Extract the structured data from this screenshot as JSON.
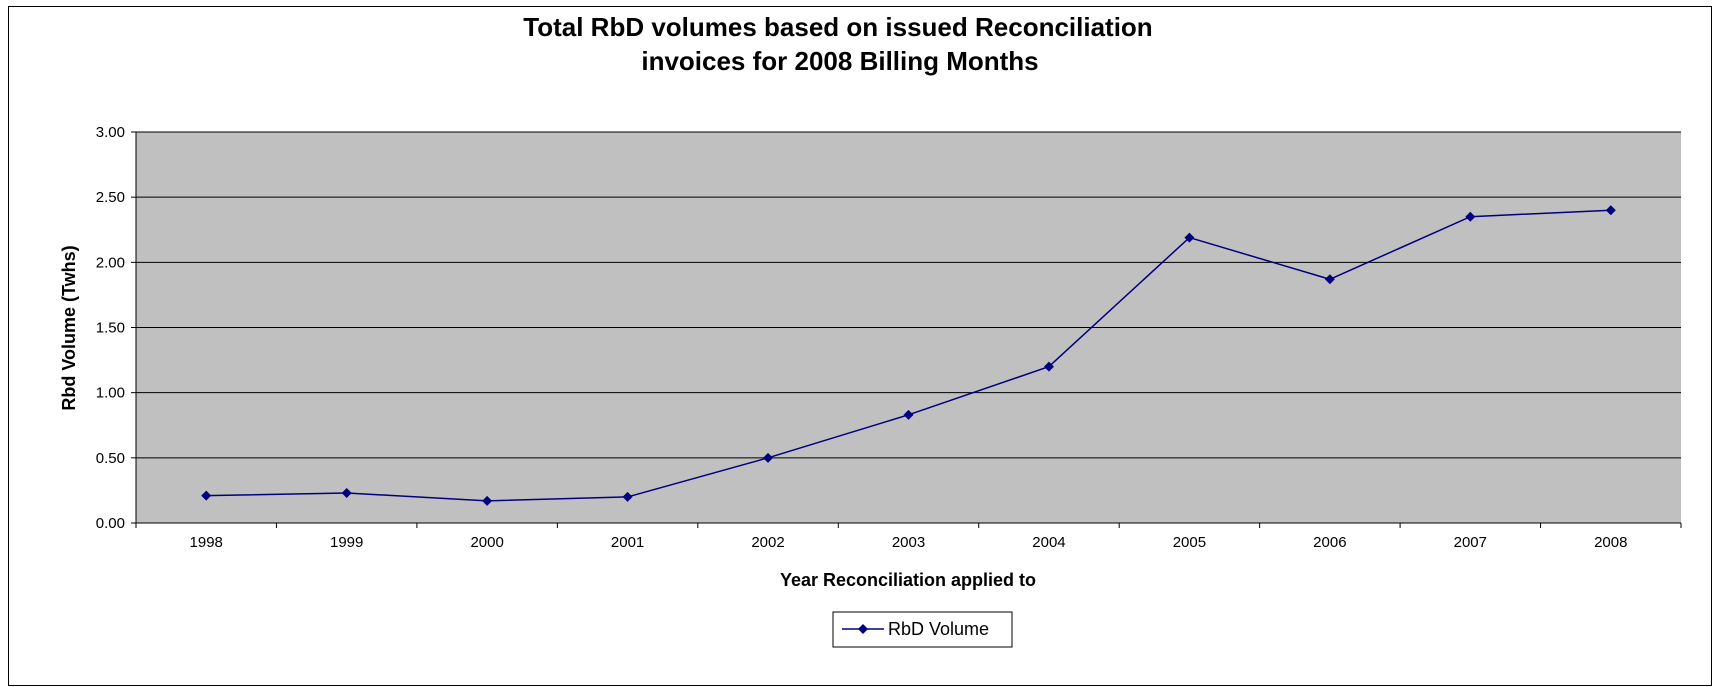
{
  "chart_data": {
    "type": "line",
    "title": [
      "Total RbD volumes based on issued Reconciliation",
      "invoices for 2008 Billing Months"
    ],
    "xlabel": "Year Reconciliation applied to",
    "ylabel": "Rbd Volume (Twhs)",
    "categories": [
      "1998",
      "1999",
      "2000",
      "2001",
      "2002",
      "2003",
      "2004",
      "2005",
      "2006",
      "2007",
      "2008"
    ],
    "series": [
      {
        "name": "RbD Volume",
        "values": [
          0.21,
          0.23,
          0.17,
          0.2,
          0.5,
          0.83,
          1.2,
          2.19,
          1.87,
          2.35,
          2.4
        ]
      }
    ],
    "ylim": [
      0,
      3
    ],
    "yticks": [
      "0.00",
      "0.50",
      "1.00",
      "1.50",
      "2.00",
      "2.50",
      "3.00"
    ],
    "grid": true,
    "legend_position": "bottom",
    "colors": {
      "plot_background": "#C0C0C0",
      "series": "#000080",
      "grid": "#000000"
    }
  }
}
